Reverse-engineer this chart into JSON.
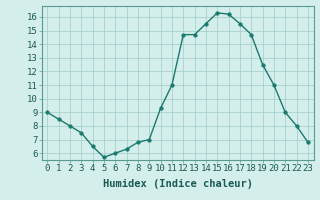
{
  "x": [
    0,
    1,
    2,
    3,
    4,
    5,
    6,
    7,
    8,
    9,
    10,
    11,
    12,
    13,
    14,
    15,
    16,
    17,
    18,
    19,
    20,
    21,
    22,
    23
  ],
  "y": [
    9.0,
    8.5,
    8.0,
    7.5,
    6.5,
    5.7,
    6.0,
    6.3,
    6.8,
    7.0,
    9.3,
    11.0,
    14.7,
    14.7,
    15.5,
    16.3,
    16.2,
    15.5,
    14.7,
    12.5,
    11.0,
    9.0,
    8.0,
    6.8
  ],
  "line_color": "#1a7a6e",
  "marker_color": "#1a7a6e",
  "bg_color": "#d4eeeb",
  "grid_color": "#a0ccc8",
  "xlabel": "Humidex (Indice chaleur)",
  "xlim": [
    -0.5,
    23.5
  ],
  "ylim": [
    5.5,
    16.8
  ],
  "yticks": [
    6,
    7,
    8,
    9,
    10,
    11,
    12,
    13,
    14,
    15,
    16
  ],
  "xticks": [
    0,
    1,
    2,
    3,
    4,
    5,
    6,
    7,
    8,
    9,
    10,
    11,
    12,
    13,
    14,
    15,
    16,
    17,
    18,
    19,
    20,
    21,
    22,
    23
  ],
  "xtick_labels": [
    "0",
    "1",
    "2",
    "3",
    "4",
    "5",
    "6",
    "7",
    "8",
    "9",
    "10",
    "11",
    "12",
    "13",
    "14",
    "15",
    "16",
    "17",
    "18",
    "19",
    "20",
    "21",
    "22",
    "23"
  ],
  "xlabel_fontsize": 7.5,
  "tick_fontsize": 6.5,
  "linewidth": 1.0,
  "markersize": 2.5
}
